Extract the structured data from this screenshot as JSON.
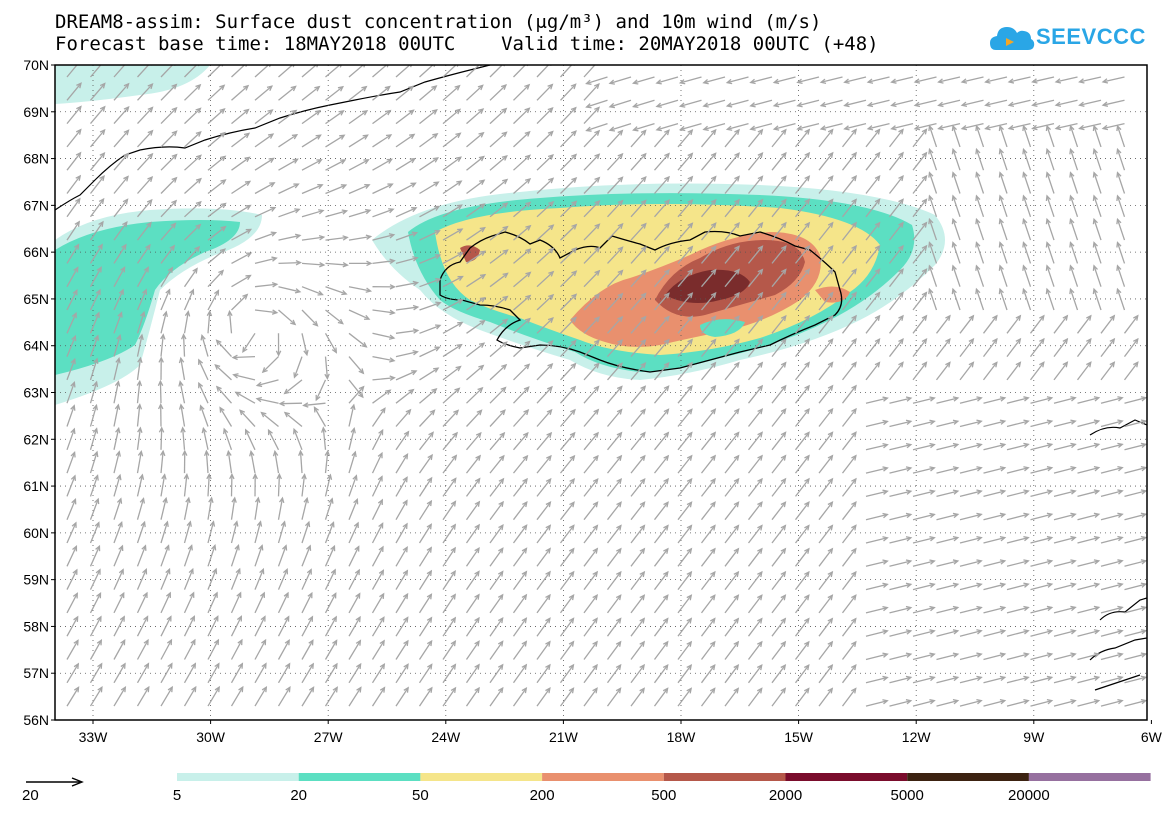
{
  "title": {
    "line1": "DREAM8-assim: Surface dust concentration (μg/m³) and 10m wind (m/s)",
    "line2": "Forecast base time: 18MAY2018 00UTC    Valid time: 20MAY2018 00UTC (+48)"
  },
  "logo": {
    "text": "SEEVCCC",
    "icon": "cloud-icon",
    "color": "#2aa6e6"
  },
  "map": {
    "lat_labels": [
      "70N",
      "69N",
      "68N",
      "67N",
      "66N",
      "65N",
      "64N",
      "63N",
      "62N",
      "61N",
      "60N",
      "59N",
      "58N",
      "57N",
      "56N"
    ],
    "lon_labels": [
      "33W",
      "30W",
      "27W",
      "24W",
      "21W",
      "18W",
      "15W",
      "12W",
      "9W",
      "6W"
    ],
    "wind_reference": {
      "value": "20"
    }
  },
  "colorbar": {
    "colors": [
      "#c8f0ea",
      "#5cdfc2",
      "#f5e58a",
      "#e9906e",
      "#b5584a",
      "#7a0c2c",
      "#3c2211",
      "#96709f"
    ],
    "labels": [
      "5",
      "20",
      "50",
      "200",
      "500",
      "2000",
      "5000",
      "20000"
    ]
  }
}
